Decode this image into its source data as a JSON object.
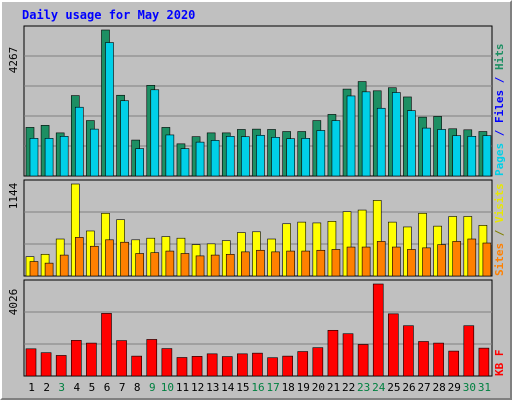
{
  "title": "Daily usage for May 2020",
  "colors": {
    "pages": "#1d8f63",
    "files": "#00d0e8",
    "hits": "#1d8f63",
    "sites": "#ff8000",
    "visits": "#ffff00",
    "kb": "#ff0000",
    "weekend_day": "#008040",
    "weekday_day": "#000000",
    "title": "#0000ff",
    "panel_bg": "#c0c0c0",
    "grid": "#808080"
  },
  "chart_data": [
    {
      "type": "bar",
      "panel": "top",
      "ymax_label": "4267",
      "ylim": [
        0,
        4267
      ],
      "legend": {
        "pages": "Pages",
        "files": "Files",
        "hits": "Hits",
        "sep": "/"
      },
      "categories": [
        "1",
        "2",
        "3",
        "4",
        "5",
        "6",
        "7",
        "8",
        "9",
        "10",
        "11",
        "12",
        "13",
        "14",
        "15",
        "16",
        "17",
        "18",
        "19",
        "20",
        "21",
        "22",
        "23",
        "24",
        "25",
        "26",
        "27",
        "28",
        "29",
        "30",
        "31"
      ],
      "series": [
        {
          "name": "Hits",
          "values": [
            1420,
            1480,
            1260,
            2350,
            1620,
            4267,
            2360,
            1050,
            2650,
            1420,
            940,
            1150,
            1260,
            1260,
            1360,
            1370,
            1360,
            1300,
            1300,
            1620,
            1800,
            2540,
            2760,
            2490,
            2580,
            2310,
            1720,
            1740,
            1380,
            1350,
            1300
          ]
        },
        {
          "name": "Files",
          "values": [
            1100,
            1100,
            1160,
            2010,
            1370,
            3900,
            2200,
            800,
            2520,
            1200,
            800,
            990,
            1040,
            1160,
            1150,
            1190,
            1130,
            1090,
            1100,
            1330,
            1620,
            2340,
            2460,
            1980,
            2440,
            1910,
            1400,
            1360,
            1180,
            1160,
            1180
          ]
        }
      ]
    },
    {
      "type": "bar",
      "panel": "middle",
      "ymax_label": "1144",
      "ylim": [
        0,
        1144
      ],
      "legend": {
        "sites": "Sites",
        "visits": "Visits",
        "sep": "/"
      },
      "categories": [
        "1",
        "2",
        "3",
        "4",
        "5",
        "6",
        "7",
        "8",
        "9",
        "10",
        "11",
        "12",
        "13",
        "14",
        "15",
        "16",
        "17",
        "18",
        "19",
        "20",
        "21",
        "22",
        "23",
        "24",
        "25",
        "26",
        "27",
        "28",
        "29",
        "30",
        "31"
      ],
      "series": [
        {
          "name": "Visits",
          "values": [
            240,
            270,
            460,
            1144,
            560,
            780,
            700,
            450,
            470,
            490,
            470,
            390,
            400,
            440,
            540,
            550,
            460,
            650,
            670,
            660,
            680,
            800,
            820,
            940,
            670,
            610,
            780,
            620,
            740,
            740,
            630
          ]
        },
        {
          "name": "Sites",
          "values": [
            180,
            160,
            260,
            480,
            370,
            450,
            420,
            280,
            290,
            310,
            280,
            250,
            260,
            270,
            300,
            320,
            300,
            310,
            310,
            320,
            330,
            360,
            360,
            430,
            360,
            330,
            350,
            390,
            430,
            460,
            410
          ]
        }
      ]
    },
    {
      "type": "bar",
      "panel": "bottom",
      "ymax_label": "4026",
      "ylim": [
        0,
        4026
      ],
      "legend": {
        "kb": "KB F"
      },
      "categories": [
        "1",
        "2",
        "3",
        "4",
        "5",
        "6",
        "7",
        "8",
        "9",
        "10",
        "11",
        "12",
        "13",
        "14",
        "15",
        "16",
        "17",
        "18",
        "19",
        "20",
        "21",
        "22",
        "23",
        "24",
        "25",
        "26",
        "27",
        "28",
        "29",
        "30",
        "31"
      ],
      "series": [
        {
          "name": "KB F",
          "values": [
            1190,
            1020,
            900,
            1560,
            1440,
            2740,
            1550,
            870,
            1600,
            1200,
            810,
            860,
            970,
            850,
            970,
            1000,
            800,
            870,
            1070,
            1240,
            2000,
            1850,
            1380,
            4026,
            2720,
            2200,
            1510,
            1440,
            1090,
            2200,
            1220
          ]
        }
      ]
    }
  ],
  "x_axis": {
    "days": [
      "1",
      "2",
      "3",
      "4",
      "5",
      "6",
      "7",
      "8",
      "9",
      "10",
      "11",
      "12",
      "13",
      "14",
      "15",
      "16",
      "17",
      "18",
      "19",
      "20",
      "21",
      "22",
      "23",
      "24",
      "25",
      "26",
      "27",
      "28",
      "29",
      "30",
      "31"
    ],
    "weekend": [
      false,
      false,
      true,
      false,
      false,
      false,
      false,
      false,
      true,
      true,
      false,
      false,
      false,
      false,
      false,
      true,
      true,
      false,
      false,
      false,
      false,
      false,
      true,
      true,
      false,
      false,
      false,
      false,
      false,
      true,
      true
    ]
  }
}
